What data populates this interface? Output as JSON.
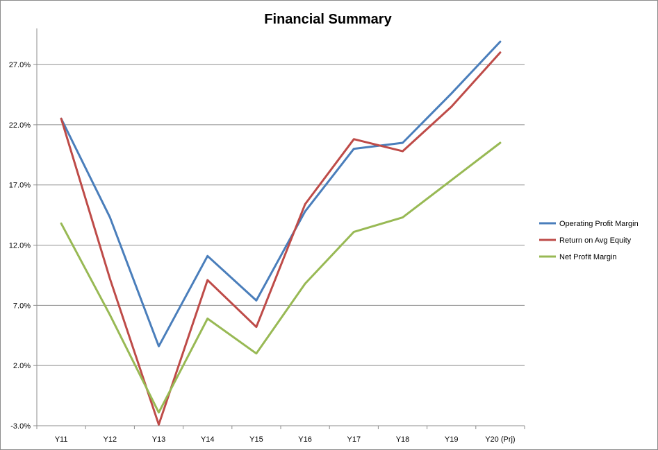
{
  "chart_data": {
    "type": "line",
    "title": "Financial Summary",
    "xlabel": "",
    "ylabel": "",
    "categories": [
      "Y11",
      "Y12",
      "Y13",
      "Y14",
      "Y15",
      "Y16",
      "Y17",
      "Y18",
      "Y19",
      "Y20 (Prj)"
    ],
    "ylim": [
      -3.0,
      30.0
    ],
    "yticks": [
      -3.0,
      2.0,
      7.0,
      12.0,
      17.0,
      22.0,
      27.0
    ],
    "ytick_labels": [
      "-3.0%",
      "2.0%",
      "7.0%",
      "12.0%",
      "17.0%",
      "22.0%",
      "27.0%"
    ],
    "grid": "horizontal",
    "legend_position": "right",
    "series": [
      {
        "name": "Operating Profit Margin",
        "color": "#4a7ebb",
        "values": [
          22.5,
          14.3,
          3.6,
          11.1,
          7.4,
          14.8,
          20.0,
          20.5,
          24.6,
          28.9
        ]
      },
      {
        "name": "Return on Avg Equity",
        "color": "#be4b48",
        "values": [
          22.5,
          9.2,
          -2.9,
          9.1,
          5.2,
          15.4,
          20.8,
          19.8,
          23.5,
          28.0
        ]
      },
      {
        "name": "Net Profit Margin",
        "color": "#98b954",
        "values": [
          13.8,
          6.2,
          -1.9,
          5.9,
          3.0,
          8.8,
          13.1,
          14.3,
          17.4,
          20.5
        ]
      }
    ]
  }
}
